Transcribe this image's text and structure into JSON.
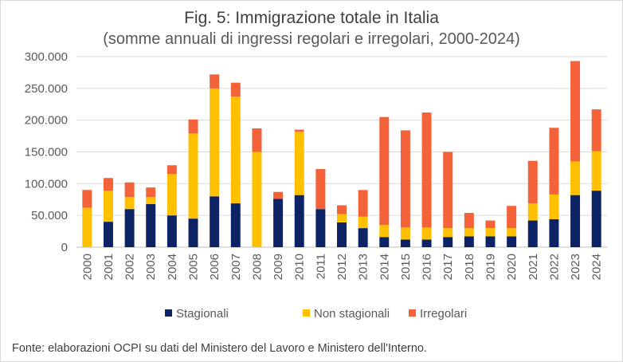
{
  "title": "Fig. 5: Immigrazione totale in Italia",
  "subtitle": "(somme annuali di ingressi regolari e irregolari, 2000-2024)",
  "source": "Fonte: elaborazioni OCPI su dati del Ministero del Lavoro e Ministero dell'Interno.",
  "chart_data": {
    "type": "bar",
    "stacked": true,
    "title": "Fig. 5: Immigrazione totale in Italia",
    "subtitle": "(somme annuali di ingressi regolari e irregolari, 2000-2024)",
    "categories": [
      "2000",
      "2001",
      "2002",
      "2003",
      "2004",
      "2005",
      "2006",
      "2007",
      "2008",
      "2009",
      "2010",
      "2011",
      "2012",
      "2013",
      "2014",
      "2015",
      "2016",
      "2017",
      "2018",
      "2019",
      "2020",
      "2021",
      "2022",
      "2023",
      "2024"
    ],
    "series": [
      {
        "name": "Stagionali",
        "color": "#0d2366",
        "values": [
          0,
          40000,
          60000,
          68000,
          50000,
          45000,
          80000,
          69000,
          0,
          76000,
          82000,
          60000,
          39000,
          30000,
          16000,
          12000,
          12000,
          16000,
          17000,
          17000,
          17000,
          42000,
          44000,
          82000,
          89000
        ]
      },
      {
        "name": "Non stagionali",
        "color": "#ffc000",
        "values": [
          62000,
          49000,
          19000,
          11000,
          65000,
          134000,
          170000,
          168000,
          150000,
          0,
          100000,
          0,
          13000,
          18000,
          19000,
          19000,
          19000,
          14000,
          13000,
          13000,
          13000,
          27000,
          39000,
          53000,
          62000
        ]
      },
      {
        "name": "Irregolari",
        "color": "#f4623a",
        "values": [
          28000,
          20000,
          23000,
          15000,
          14000,
          22000,
          22000,
          22000,
          37000,
          11000,
          3000,
          63000,
          14000,
          42000,
          170000,
          153000,
          181000,
          120000,
          24000,
          12000,
          35000,
          67000,
          105000,
          158000,
          66000
        ]
      }
    ],
    "xlabel": "",
    "ylabel": "",
    "ylim": [
      0,
      300000
    ],
    "y_ticks": [
      0,
      50000,
      100000,
      150000,
      200000,
      250000,
      300000
    ],
    "y_tick_labels": [
      "0",
      "50.000",
      "100.000",
      "150.000",
      "200.000",
      "250.000",
      "300.000"
    ],
    "grid": true,
    "legend": "bottom"
  }
}
